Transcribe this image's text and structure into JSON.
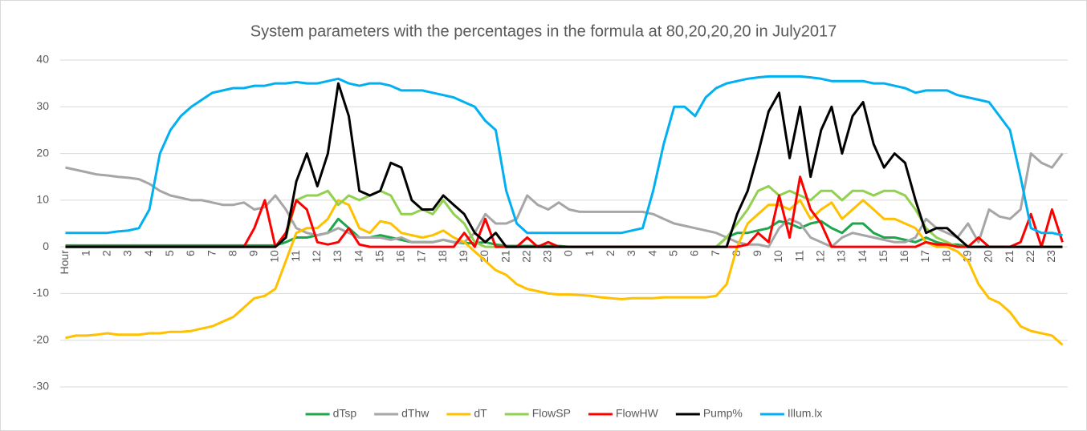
{
  "chart_data": {
    "type": "line",
    "title": "System parameters with the percentages in the formula at 80,20,20,20 in July2017",
    "categories": [
      "Hour",
      null,
      "1",
      null,
      "2",
      null,
      "3",
      null,
      "4",
      null,
      "5",
      null,
      "6",
      null,
      "7",
      null,
      "8",
      null,
      "9",
      null,
      "10",
      null,
      "11",
      null,
      "12",
      null,
      "13",
      null,
      "14",
      null,
      "15",
      null,
      "16",
      null,
      "17",
      null,
      "18",
      null,
      "19",
      null,
      "20",
      null,
      "21",
      null,
      "22",
      null,
      "23",
      null,
      "0",
      null,
      "1",
      null,
      "2",
      null,
      "3",
      null,
      "4",
      null,
      "5",
      null,
      "6",
      null,
      "7",
      null,
      "8",
      null,
      "9",
      null,
      "10",
      null,
      "11",
      null,
      "12",
      null,
      "13",
      null,
      "14",
      null,
      "15",
      null,
      "16",
      null,
      "17",
      null,
      "18",
      null,
      "19",
      null,
      "20",
      null,
      "21",
      null,
      "22",
      null,
      "23",
      null
    ],
    "ylim": [
      -30,
      40
    ],
    "yticks": [
      -30,
      -20,
      -10,
      0,
      10,
      20,
      30,
      40
    ],
    "grid": true,
    "legend": "bottom",
    "series": [
      {
        "name": "dTsp",
        "color": "#1ea64b",
        "values": [
          0.3,
          0.3,
          0.3,
          0.3,
          0.3,
          0.3,
          0.3,
          0.3,
          0.3,
          0.3,
          0.3,
          0.3,
          0.3,
          0.3,
          0.3,
          0.3,
          0.3,
          0.3,
          0.3,
          0.3,
          0.3,
          1,
          2,
          2,
          2.5,
          3,
          6,
          4,
          2,
          2,
          2.5,
          2,
          1.5,
          1,
          1,
          1,
          1.5,
          1,
          0.8,
          0.8,
          1,
          0.5,
          0.2,
          0.2,
          0.2,
          0.2,
          0.2,
          0.2,
          0,
          0,
          0,
          0,
          0,
          0,
          0,
          0,
          0,
          0,
          0,
          0,
          0,
          0,
          0,
          2,
          3,
          3,
          3.5,
          4,
          5.5,
          5,
          4,
          5,
          5.5,
          4,
          3,
          5,
          5,
          3,
          2,
          2,
          1.5,
          1,
          2,
          1,
          0.5,
          0.5,
          0,
          0,
          0,
          0,
          0,
          0,
          0,
          0,
          0,
          0
        ]
      },
      {
        "name": "dThw",
        "color": "#a6a6a6",
        "values": [
          17,
          16.5,
          16,
          15.5,
          15.3,
          15,
          14.8,
          14.5,
          13.5,
          12,
          11,
          10.5,
          10,
          10,
          9.5,
          9,
          9,
          9.5,
          8,
          8.5,
          11,
          8,
          4,
          3,
          2.5,
          3,
          4,
          3,
          2,
          2,
          2,
          1.5,
          2,
          1,
          1,
          1,
          1.5,
          1,
          1,
          3,
          7,
          5,
          5,
          6,
          11,
          9,
          8,
          9.5,
          8,
          7.5,
          7.5,
          7.5,
          7.5,
          7.5,
          7.5,
          7.5,
          7,
          6,
          5,
          4.5,
          4,
          3.5,
          3,
          2,
          1,
          0.5,
          0.5,
          0,
          4,
          6,
          5,
          2,
          1,
          0,
          2,
          3,
          2.5,
          2,
          1.5,
          1,
          1,
          2,
          6,
          4,
          3,
          2,
          5,
          1,
          8,
          6.5,
          6,
          8,
          20,
          18,
          17,
          20
        ]
      },
      {
        "name": "dT",
        "color": "#ffc000",
        "values": [
          -19.5,
          -19,
          -19,
          -18.8,
          -18.5,
          -18.8,
          -18.8,
          -18.8,
          -18.5,
          -18.5,
          -18.2,
          -18.2,
          -18,
          -17.5,
          -17,
          -16,
          -15,
          -13,
          -11,
          -10.5,
          -9,
          -3,
          3,
          4,
          4,
          6,
          10,
          9,
          4,
          3,
          5.5,
          5,
          3,
          2.5,
          2,
          2.5,
          3.5,
          2,
          1,
          -1,
          -3,
          -5,
          -6,
          -8,
          -9,
          -9.5,
          -10,
          -10.2,
          -10.2,
          -10.3,
          -10.5,
          -10.8,
          -11,
          -11.2,
          -11,
          -11,
          -11,
          -10.8,
          -10.8,
          -10.8,
          -10.8,
          -10.8,
          -10.5,
          -8,
          0,
          5,
          7,
          9,
          9,
          8,
          10,
          6,
          8,
          9.5,
          6,
          8,
          10,
          8,
          6,
          6,
          5,
          4,
          1,
          0,
          0,
          -1,
          -3,
          -8,
          -11,
          -12,
          -14,
          -17,
          -18,
          -18.5,
          -19,
          -21
        ]
      },
      {
        "name": "FlowSP",
        "color": "#92d050",
        "values": [
          0,
          0,
          0,
          0,
          0,
          0,
          0,
          0,
          0,
          0,
          0,
          0,
          0,
          0,
          0,
          0,
          0,
          0,
          0,
          0,
          0,
          2,
          10,
          11,
          11,
          12,
          9,
          11,
          10,
          11,
          12,
          11,
          7,
          7,
          8,
          7,
          10,
          7,
          5,
          1,
          0,
          0,
          0,
          0,
          0,
          0,
          0,
          0,
          0,
          0,
          0,
          0,
          0,
          0,
          0,
          0,
          0,
          0,
          0,
          0,
          0,
          0,
          0,
          2,
          5,
          8,
          12,
          13,
          11,
          12,
          11,
          10,
          12,
          12,
          10,
          12,
          12,
          11,
          12,
          12,
          11,
          8,
          4,
          2,
          1,
          0,
          0,
          0,
          0,
          0,
          0,
          0,
          0,
          0,
          0,
          0
        ]
      },
      {
        "name": "FlowHW",
        "color": "#ff0000",
        "values": [
          0,
          0,
          0,
          0,
          0,
          0,
          0,
          0,
          0,
          0,
          0,
          0,
          0,
          0,
          0,
          0,
          0,
          0,
          4,
          10,
          0,
          3,
          10,
          8,
          1,
          0.5,
          1,
          4,
          0.5,
          0,
          0,
          0,
          0,
          0,
          0,
          0,
          0,
          0,
          3,
          0,
          6,
          0,
          0,
          0,
          2,
          0,
          1,
          0,
          0,
          0,
          0,
          0,
          0,
          0,
          0,
          0,
          0,
          0,
          0,
          0,
          0,
          0,
          0,
          0,
          0,
          0.5,
          3,
          1,
          11,
          2,
          15,
          8,
          5,
          0,
          0,
          0,
          0,
          0,
          0,
          0,
          0,
          0,
          1,
          0.5,
          0.5,
          0,
          0,
          2,
          0,
          0,
          0,
          1,
          7,
          0,
          8,
          1
        ]
      },
      {
        "name": "Pump%",
        "color": "#000000",
        "values": [
          0,
          0,
          0,
          0,
          0,
          0,
          0,
          0,
          0,
          0,
          0,
          0,
          0,
          0,
          0,
          0,
          0,
          0,
          0,
          0,
          0,
          2,
          14,
          20,
          13,
          20,
          35,
          28,
          12,
          11,
          12,
          18,
          17,
          10,
          8,
          8,
          11,
          9,
          7,
          3,
          1,
          3,
          0,
          0,
          0,
          0,
          0,
          0,
          0,
          0,
          0,
          0,
          0,
          0,
          0,
          0,
          0,
          0,
          0,
          0,
          0,
          0,
          0,
          0,
          7,
          12,
          20,
          29,
          33,
          19,
          30,
          15,
          25,
          30,
          20,
          28,
          31,
          22,
          17,
          20,
          18,
          10,
          3,
          4,
          4,
          2,
          0,
          0,
          0,
          0,
          0,
          0,
          0,
          0,
          0,
          0
        ]
      },
      {
        "name": "Illum.lx",
        "color": "#00b0f0",
        "values": [
          3,
          3,
          3,
          3,
          3,
          3.3,
          3.5,
          4,
          8,
          20,
          25,
          28,
          30,
          31.5,
          33,
          33.5,
          34,
          34,
          34.5,
          34.5,
          35,
          35,
          35.3,
          35,
          35,
          35.5,
          36,
          35,
          34.5,
          35,
          35,
          34.5,
          33.5,
          33.5,
          33.5,
          33,
          32.5,
          32,
          31,
          30,
          27,
          25,
          12,
          5,
          3,
          3,
          3,
          3,
          3,
          3,
          3,
          3,
          3,
          3,
          3.5,
          4,
          12,
          22,
          30,
          30,
          28,
          32,
          34,
          35,
          35.5,
          36,
          36.3,
          36.5,
          36.5,
          36.5,
          36.5,
          36.3,
          36,
          35.5,
          35.5,
          35.5,
          35.5,
          35,
          35,
          34.5,
          34,
          33,
          33.5,
          33.5,
          33.5,
          32.5,
          32,
          31.5,
          31,
          28,
          25,
          15,
          4,
          3,
          3,
          2.5
        ]
      }
    ]
  }
}
